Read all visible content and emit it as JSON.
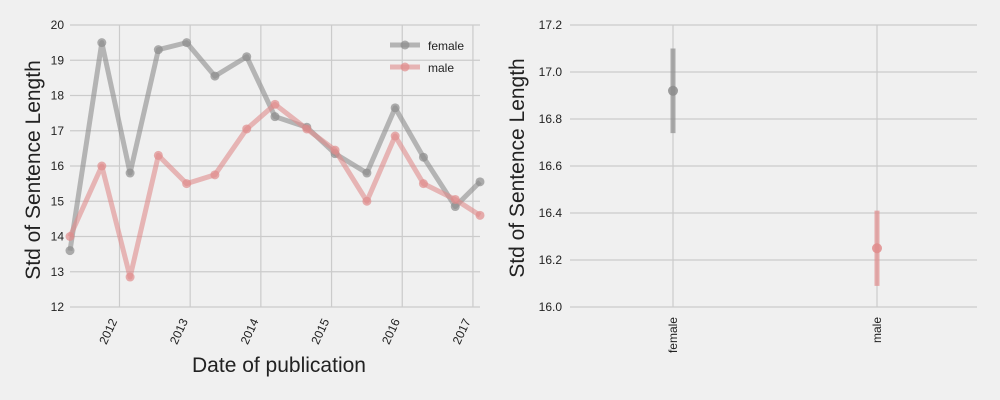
{
  "colors": {
    "background": "#f0f0f0",
    "grid": "#cbcbcb",
    "female": "#8c8c8c",
    "male": "#e08c8c"
  },
  "chart_data": [
    {
      "type": "line",
      "title": "",
      "xlabel": "Date of publication",
      "ylabel": "Std of Sentence Length",
      "x_tick_labels": [
        "2012",
        "2013",
        "2014",
        "2015",
        "2016",
        "2017"
      ],
      "y_tick_labels": [
        "12",
        "13",
        "14",
        "15",
        "16",
        "17",
        "18",
        "19",
        "20"
      ],
      "xlim": [
        2011.3,
        2017.1
      ],
      "ylim": [
        12,
        20
      ],
      "grid": true,
      "legend_position": "top-right",
      "series": [
        {
          "name": "female",
          "color": "#8c8c8c",
          "x": [
            2011.3,
            2011.75,
            2012.15,
            2012.55,
            2012.95,
            2013.35,
            2013.8,
            2014.2,
            2014.65,
            2015.05,
            2015.5,
            2015.9,
            2016.3,
            2016.75,
            2017.1
          ],
          "y": [
            13.6,
            19.5,
            15.8,
            19.3,
            19.5,
            18.55,
            19.1,
            17.4,
            17.1,
            16.35,
            15.8,
            17.65,
            16.25,
            14.85,
            15.55
          ]
        },
        {
          "name": "male",
          "color": "#e08c8c",
          "x": [
            2011.3,
            2011.75,
            2012.15,
            2012.55,
            2012.95,
            2013.35,
            2013.8,
            2014.2,
            2014.65,
            2015.05,
            2015.5,
            2015.9,
            2016.3,
            2016.75,
            2017.1
          ],
          "y": [
            14.0,
            16.0,
            12.85,
            16.3,
            15.5,
            15.75,
            17.05,
            17.75,
            17.05,
            16.45,
            15.0,
            16.85,
            15.5,
            15.05,
            14.6
          ]
        }
      ]
    },
    {
      "type": "scatter",
      "title": "",
      "xlabel": "",
      "ylabel": "Std of Sentence Length",
      "categories": [
        "female",
        "male"
      ],
      "y_tick_labels": [
        "16.0",
        "16.2",
        "16.4",
        "16.6",
        "16.8",
        "17.0",
        "17.2"
      ],
      "ylim": [
        16.0,
        17.2
      ],
      "grid": true,
      "series": [
        {
          "name": "female",
          "color": "#8c8c8c",
          "value": 16.92,
          "err_low": 16.74,
          "err_high": 17.1
        },
        {
          "name": "male",
          "color": "#e08c8c",
          "value": 16.25,
          "err_low": 16.09,
          "err_high": 16.41
        }
      ]
    }
  ]
}
